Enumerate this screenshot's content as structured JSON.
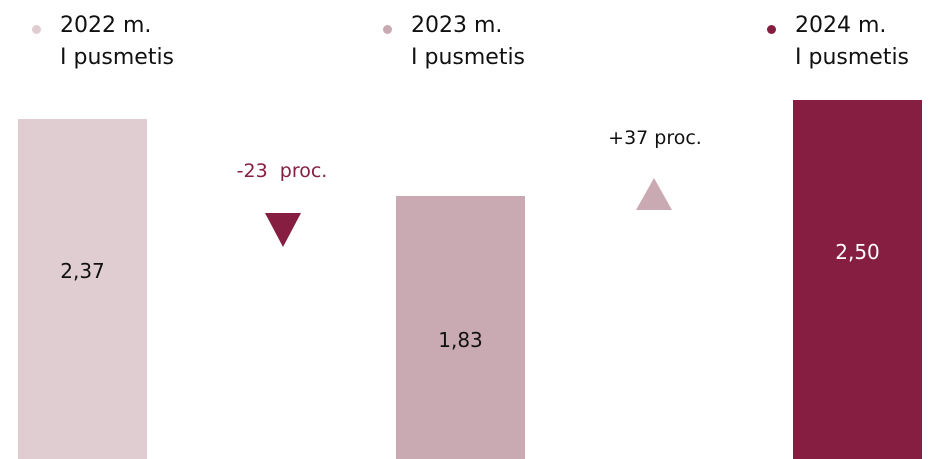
{
  "chart_data": {
    "type": "bar",
    "categories": [
      "2022 m.\nI pusmetis",
      "2023 m.\nI pusmetis",
      "2024 m.\nI pusmetis"
    ],
    "values": [
      2.37,
      1.83,
      2.5
    ],
    "value_labels": [
      "2,37",
      "1,83",
      "2,50"
    ],
    "colors": [
      "#e0cdd2",
      "#c9aab2",
      "#861e42"
    ],
    "annotations": [
      "-23  proc.",
      "+37 proc."
    ]
  }
}
